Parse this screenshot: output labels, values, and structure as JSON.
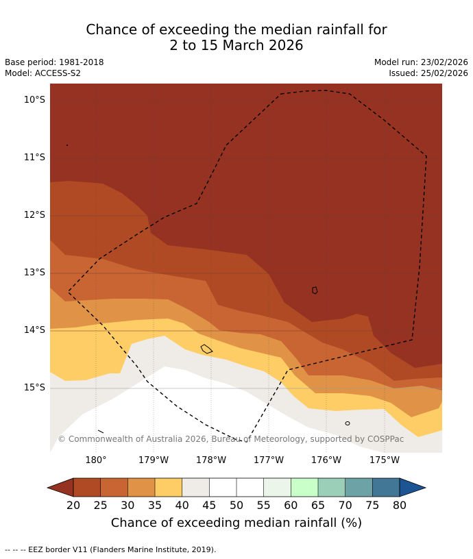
{
  "title": {
    "line1": "Chance of exceeding the median rainfall for",
    "line2": "2 to 15 March 2026"
  },
  "info_left": {
    "base_period": "Base period: 1981-2018",
    "model": "Model: ACCESS-S2"
  },
  "info_right": {
    "model_run": "Model run: 23/02/2026",
    "issued": "Issued: 25/02/2026"
  },
  "map": {
    "lat_labels": [
      "10°S",
      "11°S",
      "12°S",
      "13°S",
      "14°S",
      "15°S"
    ],
    "lon_labels": [
      "180°",
      "179°W",
      "178°W",
      "177°W",
      "176°W",
      "175°W"
    ],
    "copyright": "© Commonwealth of Australia 2026, Bureau of Meteorology, supported by COSPPac"
  },
  "colorbar": {
    "ticks": [
      "20",
      "25",
      "30",
      "35",
      "40",
      "45",
      "50",
      "55",
      "60",
      "65",
      "70",
      "75",
      "80"
    ],
    "colors": [
      "#953221",
      "#b04a25",
      "#c96532",
      "#e09346",
      "#fecd66",
      "#efebe6",
      "#ffffff",
      "#ffffff",
      "#ebf5ea",
      "#c9ffc9",
      "#9bcfb8",
      "#6da2a7",
      "#427796",
      "#1c5494"
    ],
    "label": "Chance of exceeding median rainfall (%)"
  },
  "footer": "--  --  -- EEZ border V11 (Flanders Marine Institute, 2019)."
}
